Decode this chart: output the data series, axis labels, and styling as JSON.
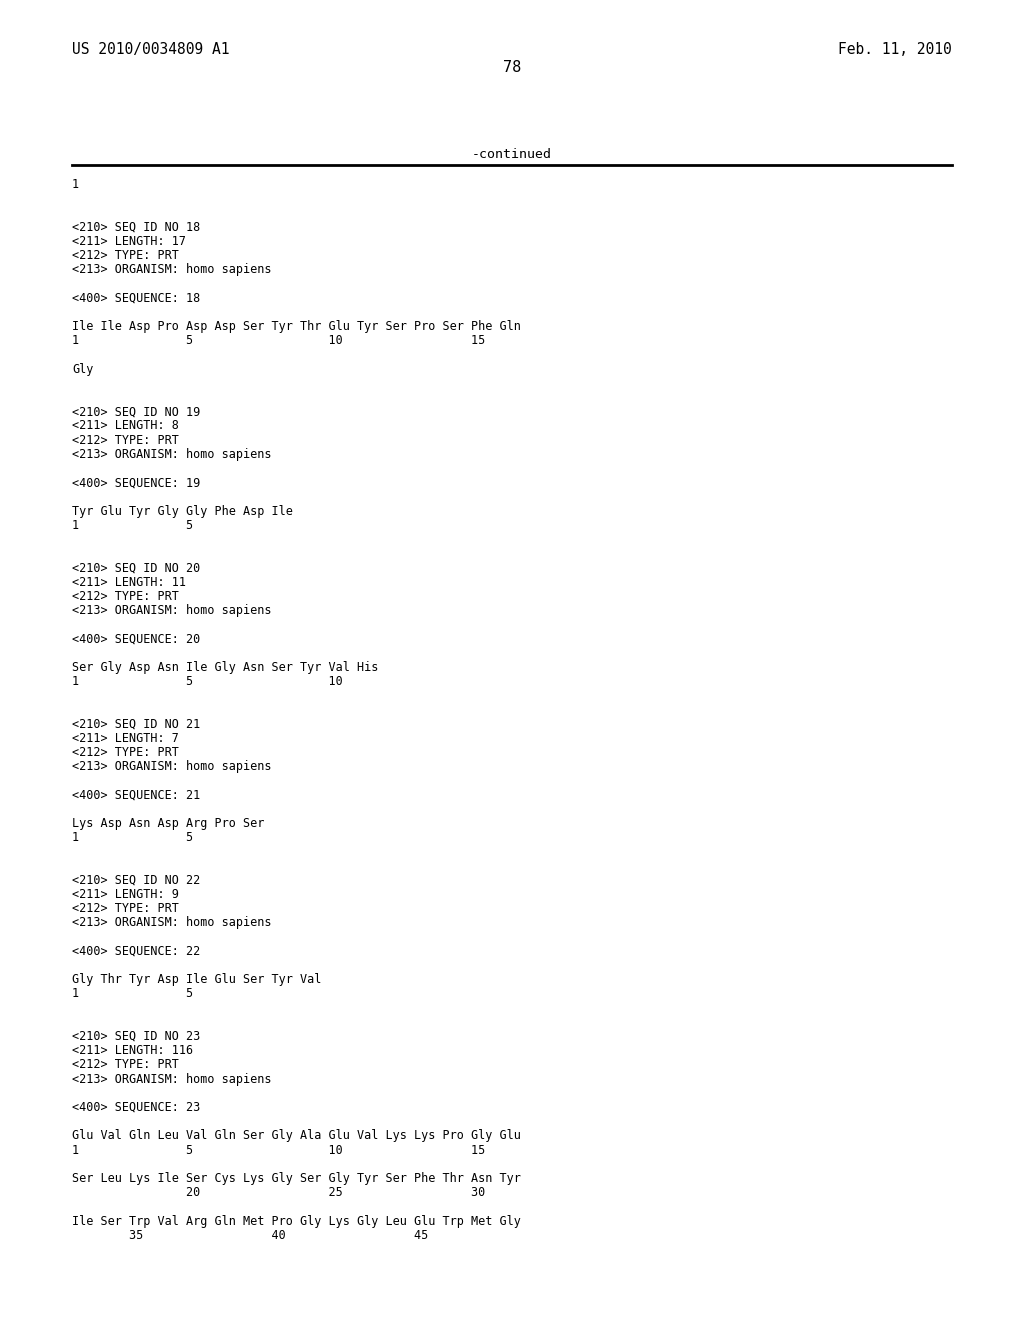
{
  "header_left": "US 2010/0034809 A1",
  "header_right": "Feb. 11, 2010",
  "page_number": "78",
  "continued_label": "-continued",
  "background_color": "#ffffff",
  "text_color": "#000000",
  "line_color": "#000000",
  "header_fontsize": 10.5,
  "page_fontsize": 11,
  "body_fontsize": 8.5,
  "continued_fontsize": 9.5,
  "body_lines": [
    "1",
    "",
    "",
    "<210> SEQ ID NO 18",
    "<211> LENGTH: 17",
    "<212> TYPE: PRT",
    "<213> ORGANISM: homo sapiens",
    "",
    "<400> SEQUENCE: 18",
    "",
    "Ile Ile Asp Pro Asp Asp Ser Tyr Thr Glu Tyr Ser Pro Ser Phe Gln",
    "1               5                   10                  15",
    "",
    "Gly",
    "",
    "",
    "<210> SEQ ID NO 19",
    "<211> LENGTH: 8",
    "<212> TYPE: PRT",
    "<213> ORGANISM: homo sapiens",
    "",
    "<400> SEQUENCE: 19",
    "",
    "Tyr Glu Tyr Gly Gly Phe Asp Ile",
    "1               5",
    "",
    "",
    "<210> SEQ ID NO 20",
    "<211> LENGTH: 11",
    "<212> TYPE: PRT",
    "<213> ORGANISM: homo sapiens",
    "",
    "<400> SEQUENCE: 20",
    "",
    "Ser Gly Asp Asn Ile Gly Asn Ser Tyr Val His",
    "1               5                   10",
    "",
    "",
    "<210> SEQ ID NO 21",
    "<211> LENGTH: 7",
    "<212> TYPE: PRT",
    "<213> ORGANISM: homo sapiens",
    "",
    "<400> SEQUENCE: 21",
    "",
    "Lys Asp Asn Asp Arg Pro Ser",
    "1               5",
    "",
    "",
    "<210> SEQ ID NO 22",
    "<211> LENGTH: 9",
    "<212> TYPE: PRT",
    "<213> ORGANISM: homo sapiens",
    "",
    "<400> SEQUENCE: 22",
    "",
    "Gly Thr Tyr Asp Ile Glu Ser Tyr Val",
    "1               5",
    "",
    "",
    "<210> SEQ ID NO 23",
    "<211> LENGTH: 116",
    "<212> TYPE: PRT",
    "<213> ORGANISM: homo sapiens",
    "",
    "<400> SEQUENCE: 23",
    "",
    "Glu Val Gln Leu Val Gln Ser Gly Ala Glu Val Lys Lys Pro Gly Glu",
    "1               5                   10                  15",
    "",
    "Ser Leu Lys Ile Ser Cys Lys Gly Ser Gly Tyr Ser Phe Thr Asn Tyr",
    "                20                  25                  30",
    "",
    "Ile Ser Trp Val Arg Gln Met Pro Gly Lys Gly Leu Glu Trp Met Gly",
    "        35                  40                  45"
  ]
}
